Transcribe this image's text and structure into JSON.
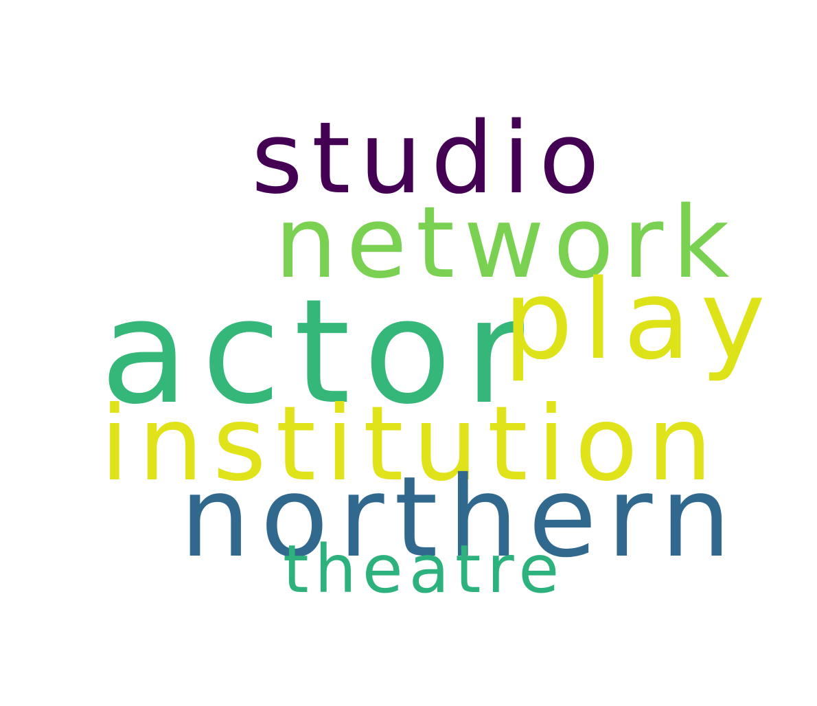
{
  "words": [
    {
      "text": "studio",
      "color": "#440154"
    },
    {
      "text": "network",
      "color": "#7ad151"
    },
    {
      "text": "actor",
      "color": "#35b779"
    },
    {
      "text": "play",
      "color": "#dde318"
    },
    {
      "text": "institution",
      "color": "#e0e31a"
    },
    {
      "text": "northern",
      "color": "#31688e"
    },
    {
      "text": "theatre",
      "color": "#2db27d"
    }
  ]
}
